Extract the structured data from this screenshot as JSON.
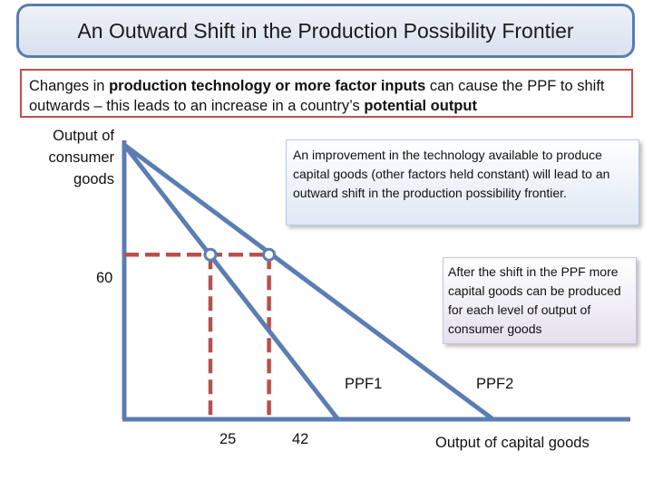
{
  "title": "An Outward Shift in the Production Possibility Frontier",
  "intro": {
    "part1": "Changes in ",
    "bold1": "production technology or more factor inputs",
    "part2": " can cause the PPF to shift outwards – this leads to an increase in a country’s ",
    "bold2": "potential output"
  },
  "axes": {
    "y_label": "Output of consumer goods",
    "x_label": "Output of capital goods"
  },
  "callouts": {
    "technology": "An improvement in the technology available to produce capital goods (other factors held constant) will lead to an outward shift in the production possibility frontier.",
    "after_shift": "After the shift in the PPF more capital goods can be produced for each level of output of consumer goods"
  },
  "diagram_data": {
    "curves": [
      {
        "name": "PPF1",
        "x_intercept": 62,
        "y_intercept": 100
      },
      {
        "name": "PPF2",
        "x_intercept": 107,
        "y_intercept": 100
      }
    ],
    "reference_y": 60,
    "reference_points": [
      {
        "curve": "PPF1",
        "x": 25,
        "y": 60
      },
      {
        "curve": "PPF2",
        "x": 42,
        "y": 60
      }
    ],
    "tick_labels": {
      "y": "60",
      "x1": "25",
      "x2": "42"
    }
  },
  "colors": {
    "curve": "#5b7db3",
    "axis": "#5b7db3",
    "dashed": "#b8504d",
    "point_fill": "#ffffff"
  }
}
